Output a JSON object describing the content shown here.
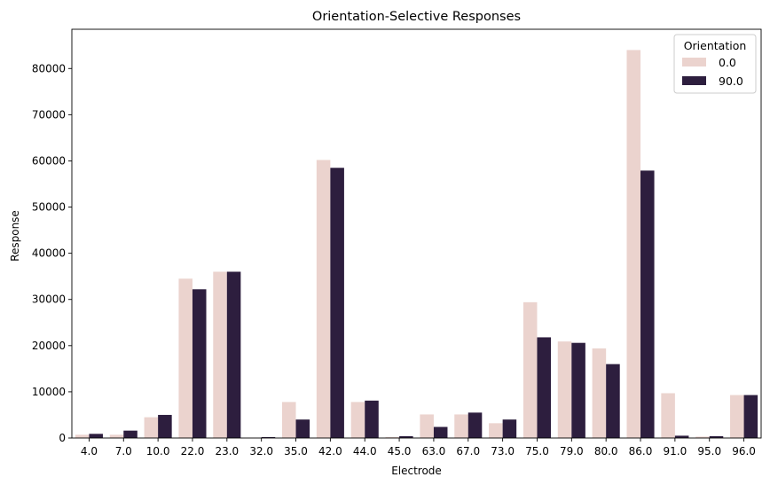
{
  "chart_data": {
    "type": "bar",
    "title": "Orientation-Selective Responses",
    "xlabel": "Electrode",
    "ylabel": "Response",
    "ylim": [
      0,
      88500
    ],
    "yticks": [
      0,
      10000,
      20000,
      30000,
      40000,
      50000,
      60000,
      70000,
      80000
    ],
    "categories": [
      "4.0",
      "7.0",
      "10.0",
      "22.0",
      "23.0",
      "32.0",
      "35.0",
      "42.0",
      "44.0",
      "45.0",
      "63.0",
      "67.0",
      "73.0",
      "75.0",
      "79.0",
      "80.0",
      "86.0",
      "91.0",
      "95.0",
      "96.0"
    ],
    "legend": {
      "title": "Orientation",
      "placement": "top-right"
    },
    "series": [
      {
        "name": "0.0",
        "color": "#ebd3ce",
        "values": [
          700,
          700,
          4500,
          34500,
          36000,
          50,
          7800,
          60200,
          7800,
          200,
          5100,
          5100,
          3200,
          29400,
          20900,
          19400,
          84000,
          9700,
          300,
          9300
        ]
      },
      {
        "name": "90.0",
        "color": "#2d1e3e",
        "values": [
          900,
          1600,
          5000,
          32200,
          36000,
          200,
          4000,
          58500,
          8100,
          400,
          2400,
          5500,
          4000,
          21800,
          20600,
          16000,
          57900,
          500,
          400,
          9300
        ]
      }
    ]
  }
}
